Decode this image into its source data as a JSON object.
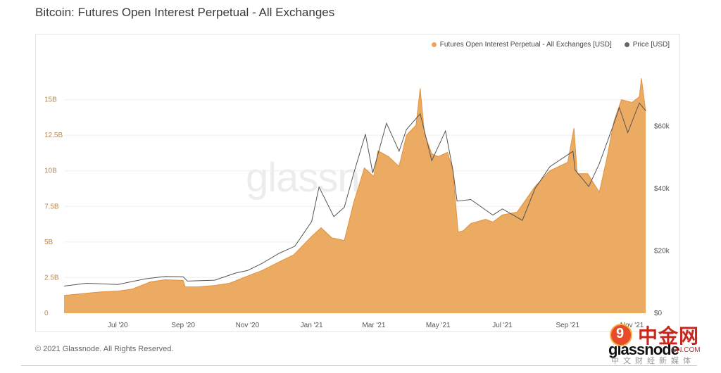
{
  "page": {
    "title": "Bitcoin: Futures Open Interest Perpetual - All Exchanges",
    "copyright": "© 2021 Glassnode. All Rights Reserved.",
    "brand": "glassnode",
    "watermark": "glassnode"
  },
  "cn_badge": {
    "name": "中金网",
    "url": "CN.COM",
    "tagline": "中文财经新媒体",
    "logo_glyph": "9"
  },
  "colors": {
    "oi_fill": "#eba65b",
    "oi_line": "#e2923f",
    "price_line": "#555555",
    "grid": "#efefef"
  },
  "chart_data": {
    "type": "area",
    "title": "Bitcoin: Futures Open Interest Perpetual - All Exchanges",
    "legend_placement": "top-right",
    "grid": true,
    "x_ticks": [
      "Jul '20",
      "Sep '20",
      "Nov '20",
      "Jan '21",
      "Mar '21",
      "May '21",
      "Jul '21",
      "Sep '21",
      "Nov '21"
    ],
    "y_left": {
      "min": 0,
      "max": 17.5,
      "unit": "B",
      "ticks": [
        "0",
        "2.5B",
        "5B",
        "7.5B",
        "10B",
        "12.5B",
        "15B"
      ],
      "tick_values": [
        0,
        2.5,
        5,
        7.5,
        10,
        12.5,
        15
      ]
    },
    "y_right": {
      "min": 0,
      "max": 80000,
      "ticks": [
        "$0",
        "$20k",
        "$40k",
        "$60k"
      ],
      "tick_values": [
        0,
        20000,
        40000,
        60000
      ]
    },
    "series": [
      {
        "name": "Futures Open Interest Perpetual - All Exchanges [USD]",
        "axis": "left",
        "color": "#eba65b",
        "points": [
          [
            "2020-05-11",
            1.25
          ],
          [
            "2020-06-01",
            1.4
          ],
          [
            "2020-06-15",
            1.5
          ],
          [
            "2020-07-01",
            1.55
          ],
          [
            "2020-07-15",
            1.7
          ],
          [
            "2020-08-01",
            2.2
          ],
          [
            "2020-08-15",
            2.35
          ],
          [
            "2020-09-01",
            2.3
          ],
          [
            "2020-09-03",
            1.85
          ],
          [
            "2020-09-15",
            1.85
          ],
          [
            "2020-10-01",
            1.95
          ],
          [
            "2020-10-15",
            2.1
          ],
          [
            "2020-11-01",
            2.6
          ],
          [
            "2020-11-15",
            3.0
          ],
          [
            "2020-12-01",
            3.6
          ],
          [
            "2020-12-15",
            4.1
          ],
          [
            "2021-01-01",
            5.4
          ],
          [
            "2021-01-10",
            6.0
          ],
          [
            "2021-01-20",
            5.3
          ],
          [
            "2021-02-01",
            5.1
          ],
          [
            "2021-02-10",
            7.8
          ],
          [
            "2021-02-20",
            10.2
          ],
          [
            "2021-03-01",
            9.6
          ],
          [
            "2021-03-05",
            11.4
          ],
          [
            "2021-03-15",
            11.0
          ],
          [
            "2021-03-25",
            10.3
          ],
          [
            "2021-04-01",
            12.5
          ],
          [
            "2021-04-10",
            13.2
          ],
          [
            "2021-04-14",
            15.8
          ],
          [
            "2021-04-18",
            12.6
          ],
          [
            "2021-04-25",
            11.2
          ],
          [
            "2021-05-01",
            11.0
          ],
          [
            "2021-05-10",
            11.3
          ],
          [
            "2021-05-15",
            10.0
          ],
          [
            "2021-05-20",
            5.7
          ],
          [
            "2021-05-25",
            5.8
          ],
          [
            "2021-06-01",
            6.3
          ],
          [
            "2021-06-15",
            6.6
          ],
          [
            "2021-06-22",
            6.4
          ],
          [
            "2021-07-01",
            6.9
          ],
          [
            "2021-07-15",
            7.1
          ],
          [
            "2021-08-01",
            8.9
          ],
          [
            "2021-08-15",
            10.0
          ],
          [
            "2021-09-01",
            10.6
          ],
          [
            "2021-09-07",
            13.0
          ],
          [
            "2021-09-10",
            9.8
          ],
          [
            "2021-09-20",
            9.8
          ],
          [
            "2021-10-01",
            8.5
          ],
          [
            "2021-10-08",
            10.8
          ],
          [
            "2021-10-15",
            13.5
          ],
          [
            "2021-10-22",
            15.0
          ],
          [
            "2021-11-01",
            14.8
          ],
          [
            "2021-11-08",
            15.2
          ],
          [
            "2021-11-10",
            16.5
          ],
          [
            "2021-11-14",
            14.2
          ]
        ]
      },
      {
        "name": "Price [USD]",
        "axis": "right",
        "color": "#555555",
        "points": [
          [
            "2020-05-11",
            8700
          ],
          [
            "2020-06-01",
            9600
          ],
          [
            "2020-07-01",
            9200
          ],
          [
            "2020-07-27",
            11000
          ],
          [
            "2020-08-15",
            11800
          ],
          [
            "2020-09-01",
            11700
          ],
          [
            "2020-09-05",
            10300
          ],
          [
            "2020-10-01",
            10600
          ],
          [
            "2020-10-21",
            12900
          ],
          [
            "2020-11-01",
            13700
          ],
          [
            "2020-11-15",
            16000
          ],
          [
            "2020-12-01",
            19200
          ],
          [
            "2020-12-16",
            21500
          ],
          [
            "2021-01-01",
            29400
          ],
          [
            "2021-01-08",
            40500
          ],
          [
            "2021-01-22",
            31000
          ],
          [
            "2021-02-01",
            34000
          ],
          [
            "2021-02-10",
            45000
          ],
          [
            "2021-02-21",
            57500
          ],
          [
            "2021-02-28",
            45000
          ],
          [
            "2021-03-13",
            61000
          ],
          [
            "2021-03-25",
            52000
          ],
          [
            "2021-04-01",
            59000
          ],
          [
            "2021-04-14",
            64000
          ],
          [
            "2021-04-25",
            49000
          ],
          [
            "2021-05-08",
            58500
          ],
          [
            "2021-05-15",
            46000
          ],
          [
            "2021-05-19",
            36000
          ],
          [
            "2021-06-01",
            36500
          ],
          [
            "2021-06-22",
            31500
          ],
          [
            "2021-07-01",
            33500
          ],
          [
            "2021-07-20",
            29800
          ],
          [
            "2021-08-01",
            40000
          ],
          [
            "2021-08-15",
            47000
          ],
          [
            "2021-09-06",
            52000
          ],
          [
            "2021-09-08",
            46000
          ],
          [
            "2021-09-21",
            40700
          ],
          [
            "2021-10-01",
            48000
          ],
          [
            "2021-10-15",
            61000
          ],
          [
            "2021-10-20",
            66000
          ],
          [
            "2021-10-28",
            58000
          ],
          [
            "2021-11-08",
            67500
          ],
          [
            "2021-11-14",
            65000
          ]
        ]
      }
    ]
  }
}
